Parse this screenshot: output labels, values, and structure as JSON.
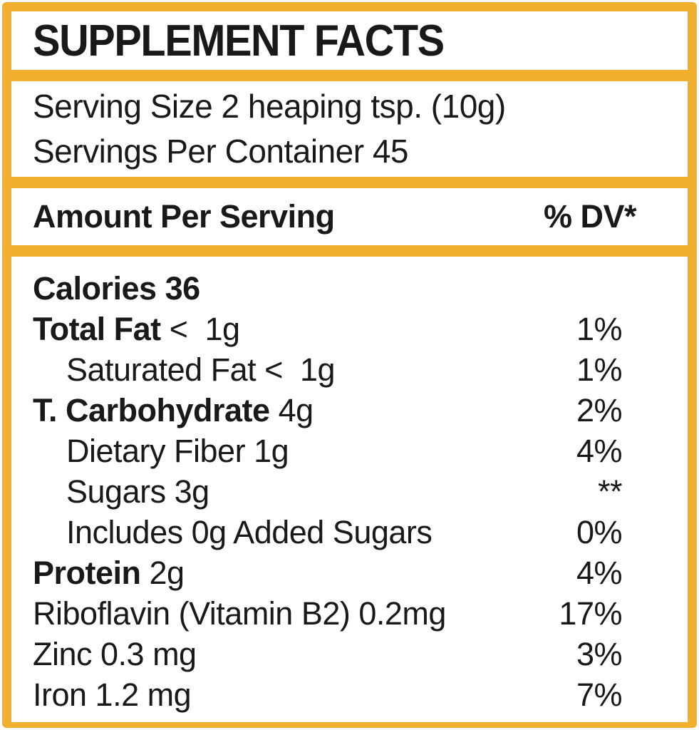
{
  "colors": {
    "frame": "#F0AF2D",
    "panel_bg": "#FFFFFE",
    "text": "#191919"
  },
  "header": {
    "title": "SUPPLEMENT FACTS"
  },
  "serving": {
    "line1": "Serving Size 2 heaping tsp. (10g)",
    "line2": "Servings Per Container 45"
  },
  "columns": {
    "amount_label": "Amount Per Serving",
    "dv_label": "% DV*"
  },
  "nutrients": [
    {
      "bold": "Calories 36",
      "rest": "",
      "dv": "",
      "indent": false
    },
    {
      "bold": "Total Fat",
      "rest": " <  1g",
      "dv": "1%",
      "indent": false
    },
    {
      "bold": "",
      "rest": "Saturated Fat <  1g",
      "dv": "1%",
      "indent": true
    },
    {
      "bold": "T. Carbohydrate",
      "rest": " 4g",
      "dv": "2%",
      "indent": false
    },
    {
      "bold": "",
      "rest": "Dietary Fiber 1g",
      "dv": "4%",
      "indent": true
    },
    {
      "bold": "",
      "rest": "Sugars 3g",
      "dv": "**",
      "indent": true
    },
    {
      "bold": "",
      "rest": "Includes 0g Added Sugars",
      "dv": "0%",
      "indent": true
    },
    {
      "bold": "Protein",
      "rest": " 2g",
      "dv": "4%",
      "indent": false
    },
    {
      "bold": "",
      "rest": "Riboflavin (Vitamin B2) 0.2mg",
      "dv": "17%",
      "indent": false
    },
    {
      "bold": "",
      "rest": "Zinc 0.3 mg",
      "dv": "3%",
      "indent": false
    },
    {
      "bold": "",
      "rest": "Iron 1.2 mg",
      "dv": "7%",
      "indent": false
    }
  ]
}
